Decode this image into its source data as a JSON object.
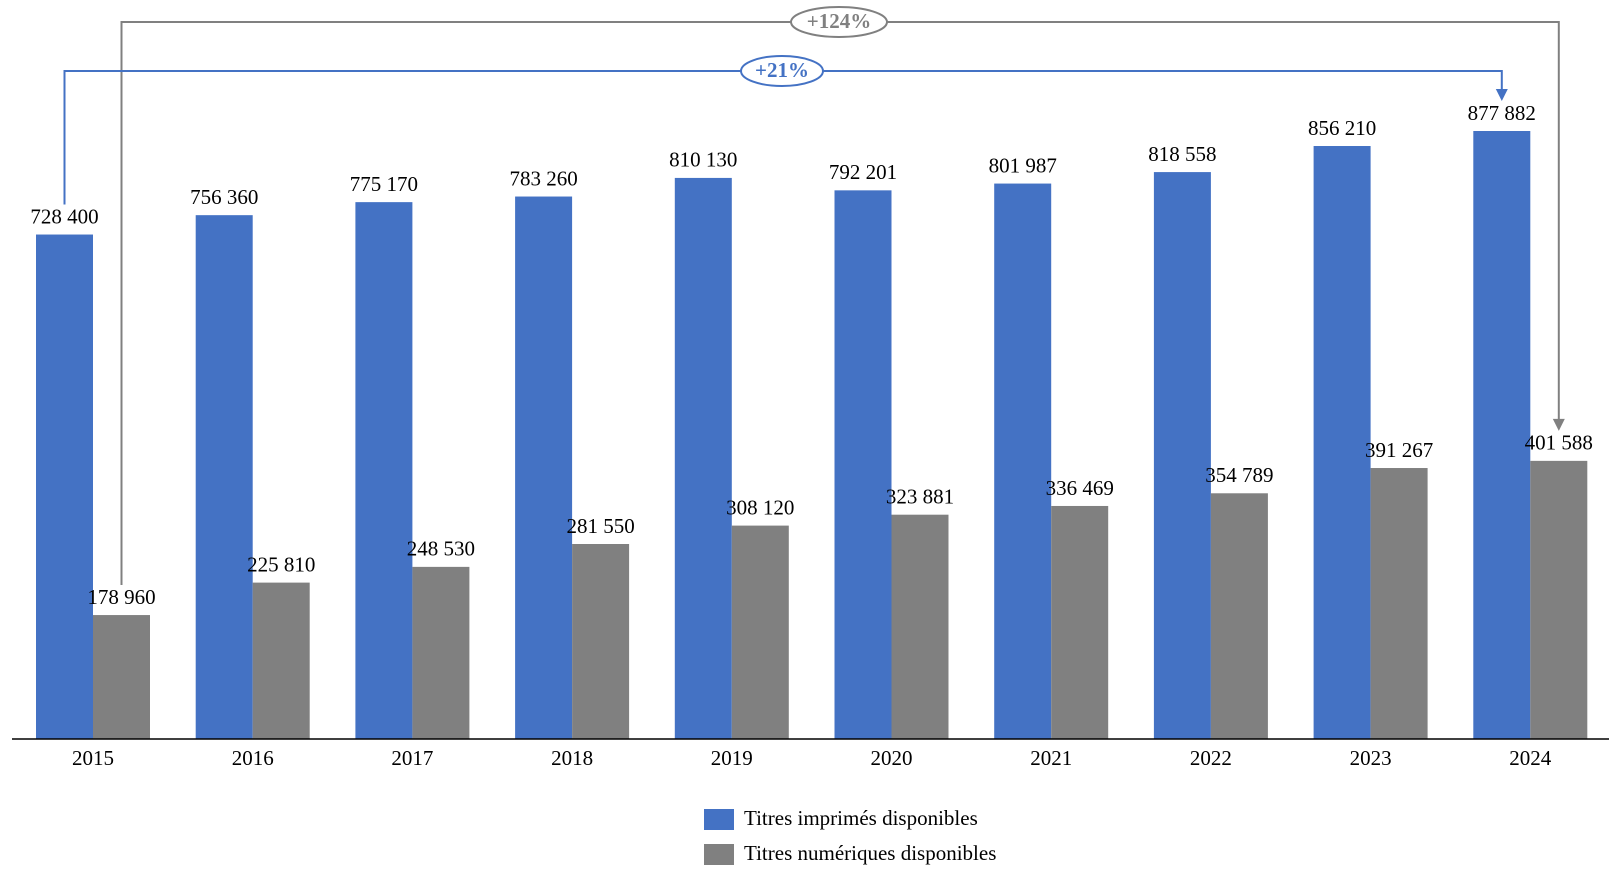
{
  "chart_data": {
    "type": "bar",
    "categories": [
      "2015",
      "2016",
      "2017",
      "2018",
      "2019",
      "2020",
      "2021",
      "2022",
      "2023",
      "2024"
    ],
    "series": [
      {
        "name": "Titres imprimés disponibles",
        "color": "#4472c4",
        "values": [
          728400,
          756360,
          775170,
          783260,
          810130,
          792201,
          801987,
          818558,
          856210,
          877882
        ],
        "value_labels": [
          "728 400",
          "756 360",
          "775 170",
          "783 260",
          "810 130",
          "792 201",
          "801 987",
          "818 558",
          "856 210",
          "877 882"
        ]
      },
      {
        "name": "Titres numériques disponibles",
        "color": "#808080",
        "values": [
          178960,
          225810,
          248530,
          281550,
          308120,
          323881,
          336469,
          354789,
          391267,
          401588
        ],
        "value_labels": [
          "178 960",
          "225 810",
          "248 530",
          "281 550",
          "308 120",
          "323 881",
          "336 469",
          "354 789",
          "391 267",
          "401 588"
        ]
      }
    ],
    "annotations": [
      {
        "text": "+21%",
        "series": 0
      },
      {
        "text": "+124%",
        "series": 1
      }
    ]
  }
}
